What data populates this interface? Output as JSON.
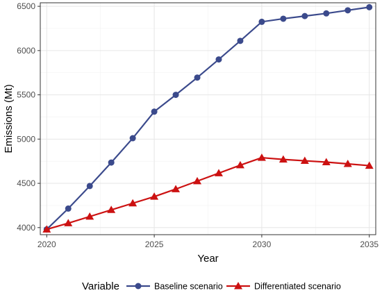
{
  "chart_data": {
    "type": "line",
    "xlabel": "Year",
    "ylabel": "Emissions (Mt)",
    "xlim": [
      2019.7,
      2035.3
    ],
    "ylim": [
      3920,
      6540
    ],
    "x_ticks": [
      2020,
      2025,
      2030,
      2035
    ],
    "y_ticks": [
      4000,
      4500,
      5000,
      5500,
      6000,
      6500
    ],
    "grid": true,
    "legend": {
      "title": "Variable",
      "position": "bottom"
    },
    "x": [
      2020,
      2021,
      2022,
      2023,
      2024,
      2025,
      2026,
      2027,
      2028,
      2029,
      2030,
      2031,
      2032,
      2033,
      2034,
      2035
    ],
    "series": [
      {
        "name": "Baseline scenario",
        "color": "#3B4A8C",
        "marker": "circle",
        "values": [
          3980,
          4215,
          4470,
          4735,
          5010,
          5310,
          5500,
          5695,
          5900,
          6110,
          6325,
          6360,
          6390,
          6420,
          6455,
          6490
        ]
      },
      {
        "name": "Differentiated scenario",
        "color": "#CC1111",
        "marker": "triangle",
        "values": [
          3980,
          4050,
          4125,
          4200,
          4275,
          4350,
          4435,
          4525,
          4615,
          4705,
          4790,
          4770,
          4755,
          4740,
          4720,
          4700
        ]
      }
    ]
  }
}
